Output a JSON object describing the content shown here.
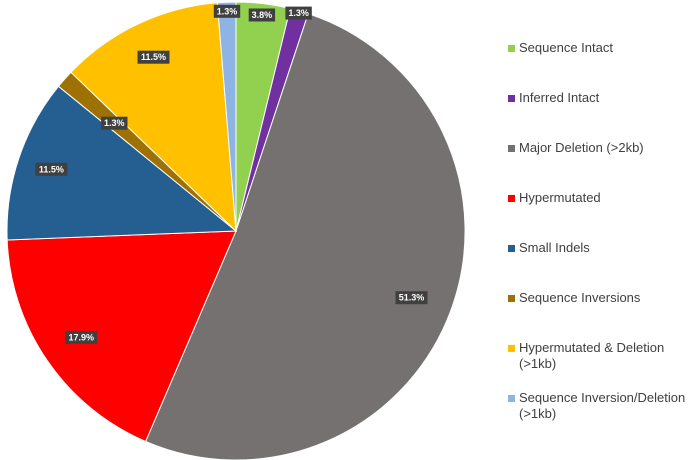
{
  "chart_data": {
    "type": "pie",
    "title": "",
    "legend_position": "right",
    "slices": [
      {
        "name": "Sequence Intact",
        "value": 3.8,
        "label": "3.8%",
        "color": "#92d050"
      },
      {
        "name": "Inferred Intact",
        "value": 1.3,
        "label": "1.3%",
        "color": "#7030a0"
      },
      {
        "name": "Major Deletion (>2kb)",
        "value": 51.3,
        "label": "51.3%",
        "color": "#767171"
      },
      {
        "name": "Hypermutated",
        "value": 17.9,
        "label": "17.9%",
        "color": "#ff0000"
      },
      {
        "name": "Small Indels",
        "value": 11.5,
        "label": "11.5%",
        "color": "#255e91"
      },
      {
        "name": "Sequence Inversions",
        "value": 1.3,
        "label": "1.3%",
        "color": "#9e7104"
      },
      {
        "name": "Hypermutated & Deletion (>1kb)",
        "value": 11.5,
        "label": "11.5%",
        "color": "#ffc000"
      },
      {
        "name": "Sequence Inversion/Deletion (>1kb)",
        "value": 1.3,
        "label": "1.3%",
        "color": "#8eb4e3"
      }
    ]
  }
}
